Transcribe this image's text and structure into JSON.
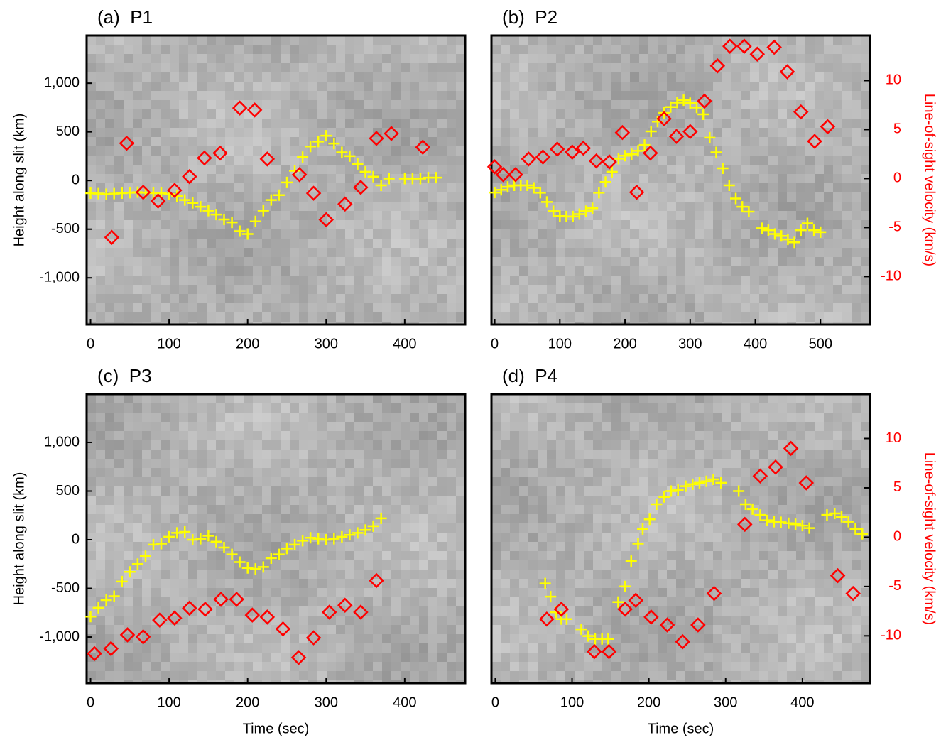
{
  "chart_data": [
    {
      "type": "scatter",
      "title": "(a)  P1",
      "ylabel": "Height along slit (km)",
      "xlim": [
        -5,
        477
      ],
      "ylim": [
        -1480,
        1490
      ],
      "y2lim": [
        -14.9,
        14.6
      ],
      "xticks": [
        0,
        100,
        200,
        300,
        400
      ],
      "yticks": [
        {
          "value": -1000,
          "label": "-1,000"
        },
        -500,
        0,
        500,
        {
          "value": 1000,
          "label": "1,000"
        }
      ],
      "series": [
        {
          "marker": "plus",
          "color": "#ffff00",
          "x": [
            0,
            10,
            20,
            30,
            40,
            50,
            60,
            70,
            80,
            90,
            100,
            110,
            120,
            130,
            140,
            150,
            160,
            170,
            180,
            190,
            200,
            210,
            220,
            230,
            240,
            250,
            260,
            270,
            280,
            290,
            300,
            310,
            320,
            330,
            340,
            350,
            360,
            370,
            380,
            400,
            410,
            420,
            430,
            440
          ],
          "values": [
            -130,
            -135,
            -140,
            -135,
            -130,
            -125,
            -120,
            -125,
            -130,
            -130,
            -140,
            -160,
            -200,
            -230,
            -270,
            -310,
            -350,
            -400,
            -430,
            -520,
            -550,
            -420,
            -310,
            -200,
            -150,
            -20,
            100,
            240,
            350,
            400,
            460,
            380,
            290,
            250,
            170,
            90,
            40,
            -50,
            20,
            20,
            20,
            20,
            30,
            30
          ]
        },
        {
          "marker": "diamond",
          "color": "#ff0000",
          "axis": "y2",
          "x": [
            27,
            46,
            67,
            86,
            107,
            126,
            145,
            165,
            190,
            209,
            225,
            266,
            284,
            300,
            324,
            344,
            364,
            383,
            423
          ],
          "values": [
            -6.0,
            3.6,
            -1.4,
            -2.3,
            -1.2,
            0.2,
            2.1,
            2.6,
            7.2,
            7.0,
            2.0,
            0.4,
            -1.5,
            -4.2,
            -2.6,
            -0.9,
            4.1,
            4.6,
            3.2
          ]
        }
      ]
    },
    {
      "type": "scatter",
      "title": "(b)  P2",
      "y2label": "Line-of-sight velocity (km/s)",
      "xlim": [
        -5,
        576
      ],
      "ylim": [
        -1480,
        1490
      ],
      "y2lim": [
        -14.9,
        14.6
      ],
      "xticks": [
        0,
        100,
        200,
        300,
        400,
        500
      ],
      "y2ticks": [
        -10,
        -5,
        0,
        5,
        10
      ],
      "series": [
        {
          "marker": "plus",
          "color": "#ffff00",
          "x": [
            0,
            10,
            20,
            30,
            40,
            50,
            60,
            70,
            80,
            90,
            100,
            110,
            120,
            130,
            140,
            150,
            160,
            170,
            180,
            190,
            200,
            210,
            220,
            230,
            240,
            250,
            260,
            270,
            280,
            290,
            300,
            310,
            320,
            330,
            340,
            350,
            360,
            370,
            380,
            390,
            410,
            420,
            430,
            440,
            450,
            460,
            470,
            480,
            490,
            500
          ],
          "values": [
            -124,
            -95,
            -65,
            -50,
            -50,
            -50,
            -75,
            -125,
            -220,
            -315,
            -365,
            -370,
            -370,
            -345,
            -315,
            -285,
            -125,
            -15,
            90,
            225,
            255,
            270,
            305,
            365,
            505,
            605,
            695,
            755,
            800,
            825,
            795,
            750,
            680,
            440,
            290,
            125,
            -50,
            -185,
            -270,
            -320,
            -490,
            -510,
            -550,
            -570,
            -605,
            -635,
            -510,
            -440,
            -510,
            -530
          ]
        },
        {
          "marker": "diamond",
          "color": "#ff0000",
          "axis": "y2",
          "x": [
            0,
            13,
            32,
            52,
            74,
            96,
            119,
            136,
            156,
            176,
            196,
            218,
            239,
            260,
            279,
            300,
            322,
            342,
            361,
            383,
            403,
            429,
            449,
            470,
            491,
            511
          ],
          "values": [
            1.2,
            0.4,
            0.4,
            2.0,
            2.2,
            3.0,
            2.7,
            3.1,
            1.8,
            1.7,
            4.7,
            -1.4,
            2.6,
            6.1,
            4.3,
            4.8,
            7.9,
            11.5,
            13.5,
            13.5,
            12.7,
            13.4,
            10.9,
            6.8,
            3.8,
            5.3
          ]
        }
      ]
    },
    {
      "type": "scatter",
      "title": "(c)  P3",
      "xlabel": "Time (sec)",
      "ylabel": "Height along slit (km)",
      "xlim": [
        -5,
        477
      ],
      "ylim": [
        -1474,
        1496
      ],
      "y2lim": [
        -14.8,
        14.5
      ],
      "xticks": [
        0,
        100,
        200,
        300,
        400
      ],
      "yticks": [
        {
          "value": -1000,
          "label": "-1,000"
        },
        -500,
        0,
        500,
        {
          "value": 1000,
          "label": "1,000"
        }
      ],
      "series": [
        {
          "marker": "plus",
          "color": "#ffff00",
          "x": [
            0,
            10,
            20,
            30,
            40,
            50,
            60,
            70,
            80,
            90,
            100,
            110,
            120,
            130,
            140,
            150,
            160,
            170,
            180,
            190,
            200,
            210,
            220,
            230,
            240,
            250,
            260,
            270,
            280,
            290,
            300,
            310,
            320,
            330,
            340,
            350,
            360,
            370
          ],
          "values": [
            -790,
            -700,
            -620,
            -580,
            -430,
            -330,
            -250,
            -170,
            -50,
            -40,
            30,
            70,
            80,
            0,
            10,
            40,
            -20,
            -80,
            -150,
            -230,
            -290,
            -300,
            -280,
            -190,
            -150,
            -90,
            -50,
            -10,
            20,
            10,
            0,
            10,
            30,
            50,
            70,
            100,
            140,
            220
          ]
        },
        {
          "marker": "diamond",
          "color": "#ff0000",
          "axis": "y2",
          "x": [
            5,
            26,
            47,
            67,
            88,
            107,
            126,
            146,
            166,
            186,
            206,
            225,
            245,
            265,
            284,
            304,
            324,
            344,
            364
          ],
          "values": [
            -11.8,
            -11.3,
            -9.9,
            -10.1,
            -8.4,
            -8.2,
            -7.2,
            -7.3,
            -6.3,
            -6.3,
            -7.9,
            -8.1,
            -9.3,
            -12.2,
            -10.2,
            -7.6,
            -6.9,
            -7.6,
            -4.4
          ]
        }
      ]
    },
    {
      "type": "scatter",
      "title": "(d)  P4",
      "xlabel": "Time (sec)",
      "y2label": "Line-of-sight velocity (km/s)",
      "xlim": [
        -5,
        488
      ],
      "ylim": [
        -1474,
        1496
      ],
      "y2lim": [
        -14.8,
        14.5
      ],
      "xticks": [
        0,
        100,
        200,
        300,
        400
      ],
      "y2ticks": [
        -10,
        -5,
        0,
        5,
        10
      ],
      "series": [
        {
          "marker": "plus",
          "color": "#ffff00",
          "x": [
            65,
            72,
            79,
            86,
            93,
            112,
            121,
            130,
            139,
            147,
            160,
            169,
            177,
            186,
            192,
            201,
            210,
            220,
            229,
            238,
            248,
            257,
            266,
            275,
            284,
            294,
            317,
            326,
            335,
            345,
            354,
            363,
            372,
            382,
            391,
            400,
            409,
            432,
            442,
            451,
            460,
            469,
            478
          ],
          "values": [
            -450,
            -585,
            -745,
            -815,
            -815,
            -920,
            -990,
            -1020,
            -1020,
            -1020,
            -640,
            -480,
            -220,
            -40,
            110,
            210,
            365,
            440,
            500,
            510,
            550,
            570,
            585,
            600,
            620,
            585,
            500,
            365,
            315,
            255,
            200,
            185,
            180,
            170,
            160,
            145,
            120,
            255,
            270,
            235,
            185,
            110,
            60
          ]
        },
        {
          "marker": "diamond",
          "color": "#ff0000",
          "axis": "y2",
          "x": [
            67,
            86,
            129,
            148,
            169,
            183,
            203,
            224,
            244,
            264,
            285,
            325,
            345,
            365,
            385,
            405,
            446,
            466
          ],
          "values": [
            -8.3,
            -7.3,
            -11.6,
            -11.6,
            -7.3,
            -6.4,
            -8.1,
            -8.9,
            -10.6,
            -8.9,
            -5.7,
            1.3,
            6.2,
            7.1,
            9.0,
            5.5,
            -3.9,
            -5.7
          ]
        }
      ]
    }
  ]
}
